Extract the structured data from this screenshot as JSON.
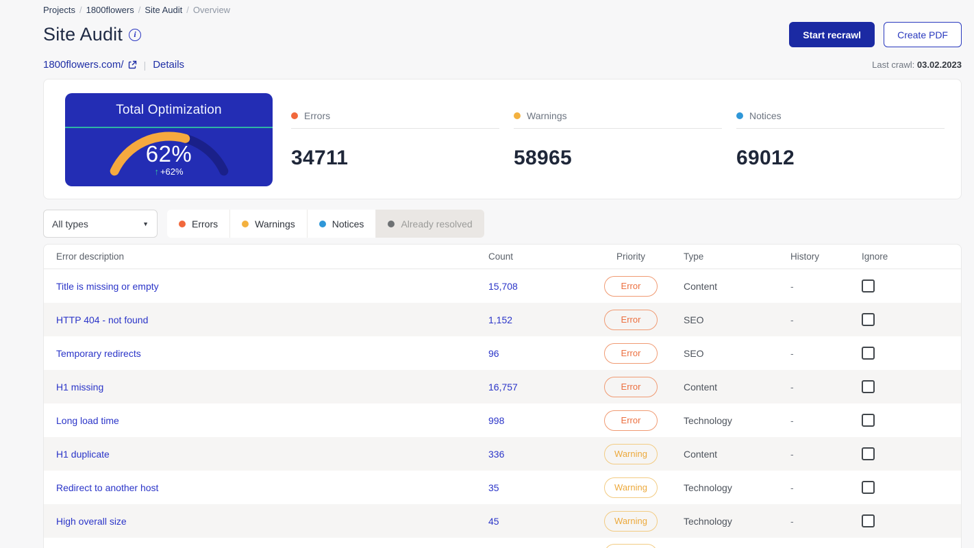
{
  "breadcrumb": {
    "separator": "/",
    "items": [
      {
        "label": "Projects",
        "current": false
      },
      {
        "label": "1800flowers",
        "current": false
      },
      {
        "label": "Site Audit",
        "current": false
      },
      {
        "label": "Overview",
        "current": true
      }
    ]
  },
  "header": {
    "title": "Site Audit",
    "info_icon": "i",
    "buttons": {
      "start_recrawl": "Start recrawl",
      "create_pdf": "Create PDF"
    }
  },
  "site_bar": {
    "domain": "1800flowers.com/",
    "separator": "|",
    "details_link": "Details",
    "last_crawl_label": "Last crawl:",
    "last_crawl_date": "03.02.2023"
  },
  "summary": {
    "gauge": {
      "title": "Total Optimization",
      "value": "62%",
      "percent": 62,
      "delta": "+62%",
      "arrow": "up",
      "colors": {
        "card": "#232DB4",
        "track": "#1A2089",
        "fill": "#F5A93F",
        "divider": "#2EB4A4",
        "delta_arrow": "#35C79E"
      }
    },
    "stats": [
      {
        "label": "Errors",
        "value": "34711",
        "color": "#F1683C"
      },
      {
        "label": "Warnings",
        "value": "58965",
        "color": "#F3B13F"
      },
      {
        "label": "Notices",
        "value": "69012",
        "color": "#2F97D8"
      }
    ]
  },
  "filters": {
    "type_dropdown": {
      "value": "All types"
    },
    "toggles": [
      {
        "label": "Errors",
        "color": "#F1683C",
        "active": true
      },
      {
        "label": "Warnings",
        "color": "#F3B13F",
        "active": true
      },
      {
        "label": "Notices",
        "color": "#2F97D8",
        "active": true
      },
      {
        "label": "Already resolved",
        "color": "#6E7173",
        "active": false
      }
    ]
  },
  "table": {
    "columns": [
      "Error description",
      "Count",
      "Priority",
      "Type",
      "History",
      "Ignore"
    ],
    "rows": [
      {
        "description": "Title is missing or empty",
        "count": "15,708",
        "priority": "Error",
        "type": "Content",
        "history": "-",
        "ignored": false,
        "partial": false
      },
      {
        "description": "HTTP 404 - not found",
        "count": "1,152",
        "priority": "Error",
        "type": "SEO",
        "history": "-",
        "ignored": false,
        "partial": false
      },
      {
        "description": "Temporary redirects",
        "count": "96",
        "priority": "Error",
        "type": "SEO",
        "history": "-",
        "ignored": false,
        "partial": false
      },
      {
        "description": "H1 missing",
        "count": "16,757",
        "priority": "Error",
        "type": "Content",
        "history": "-",
        "ignored": false,
        "partial": false
      },
      {
        "description": "Long load time",
        "count": "998",
        "priority": "Error",
        "type": "Technology",
        "history": "-",
        "ignored": false,
        "partial": false
      },
      {
        "description": "H1 duplicate",
        "count": "336",
        "priority": "Warning",
        "type": "Content",
        "history": "-",
        "ignored": false,
        "partial": false
      },
      {
        "description": "Redirect to another host",
        "count": "35",
        "priority": "Warning",
        "type": "Technology",
        "history": "-",
        "ignored": false,
        "partial": false
      },
      {
        "description": "High overall size",
        "count": "45",
        "priority": "Warning",
        "type": "Technology",
        "history": "-",
        "ignored": false,
        "partial": false
      },
      {
        "description": "",
        "count": "",
        "priority": "Warning",
        "type": "",
        "history": "",
        "ignored": false,
        "partial": true
      }
    ]
  }
}
